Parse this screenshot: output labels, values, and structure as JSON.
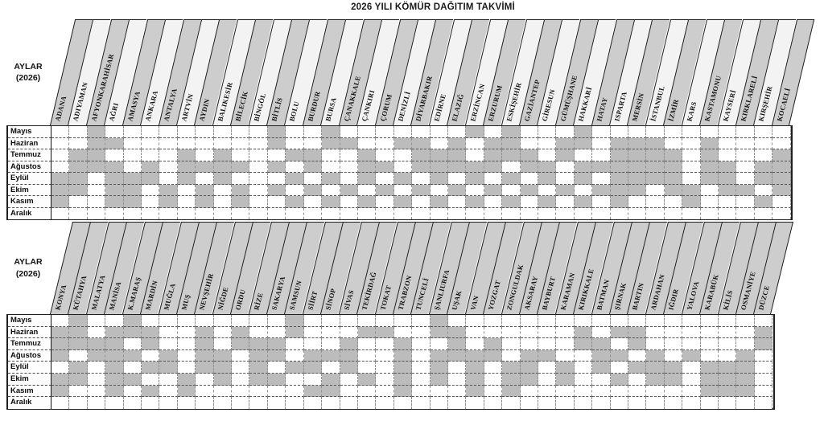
{
  "title": "2026 YILI KÖMÜR DAĞITIM TAKVİMİ",
  "row_header": {
    "line1": "AYLAR",
    "line2": "(2026)"
  },
  "months": [
    "Mayıs",
    "Haziran",
    "Temmuz",
    "Ağustos",
    "Eylül",
    "Ekim",
    "Kasım",
    "Aralık"
  ],
  "colors": {
    "cell_fill": "#bcbcbc",
    "band_gray": "#cdcdcd",
    "band_light": "#f3f3f3",
    "line": "#1f1f1f"
  },
  "tables": [
    {
      "name": "iller-adana-kocaeli",
      "provinces": [
        "ADANA",
        "ADIYAMAN",
        "AFYONKARAHİSAR",
        "AĞRI",
        "AMASYA",
        "ANKARA",
        "ANTALYA",
        "ARTVİN",
        "AYDIN",
        "BALIKESİR",
        "BİLECİK",
        "BİNGÖL",
        "BİTLİS",
        "BOLU",
        "BURDUR",
        "BURSA",
        "ÇANAKKALE",
        "ÇANKIRI",
        "ÇORUM",
        "DENİZLİ",
        "DİYARBAKIR",
        "EDİRNE",
        "ELAZIĞ",
        "ERZİNCAN",
        "ERZURUM",
        "ESKİŞEHİR",
        "GAZİANTEP",
        "GİRESUN",
        "GÜMÜŞHANE",
        "HAKKARİ",
        "HATAY",
        "ISPARTA",
        "MERSİN",
        "İSTANBUL",
        "İZMİR",
        "KARS",
        "KASTAMONU",
        "KAYSERİ",
        "KIRKLARELİ",
        "KIRŞEHİR",
        "KOCAELİ"
      ],
      "alt_bands": true,
      "schedule": [
        "00100000000010010000000101000100000000000",
        "00110000000010011001101011001101110010000",
        "01100001010001100100111011101001111010001",
        "01110101111010100110111110110111111011011",
        "11011101010001010101010101010101111011011",
        "11011010101010101010101010101011101101101",
        "10011010101001010101010101010101000100010",
        "00000000000000000000000000000000000000000"
      ]
    },
    {
      "name": "iller-konya-duzce",
      "provinces": [
        "KONYA",
        "KÜTAHYA",
        "MALATYA",
        "MANİSA",
        "K.MARAŞ",
        "MARDİN",
        "MUĞLA",
        "MUŞ",
        "NEVŞEHİR",
        "NİĞDE",
        "ORDU",
        "RİZE",
        "SAKARYA",
        "SAMSUN",
        "SİİRT",
        "SİNOP",
        "SİVAS",
        "TEKİRDAĞ",
        "TOKAT",
        "TRABZON",
        "TUNCELİ",
        "ŞANLIURFA",
        "UŞAK",
        "VAN",
        "YOZGAT",
        "ZONGULDAK",
        "AKSARAY",
        "BAYBURT",
        "KARAMAN",
        "KIRIKKALE",
        "BATMAN",
        "ŞIRNAK",
        "BARTIN",
        "ARDAHAN",
        "IĞDIR",
        "YALOVA",
        "KARABÜK",
        "KİLİS",
        "OSMANİYE",
        "DÜZCE"
      ],
      "alt_bands": false,
      "schedule": [
        "0100100000000100000001000000000000000000",
        "1101110010100100011001100000010110000001",
        "1111010010111000100100101000011010000001",
        "1011101011011011100101111011001101010010",
        "0101011011010110100101010110101011101110",
        "1101100101011001010101010110100101101110",
        "1001010100000011000100010100000000001110",
        "0000000000000000000000000000000000000000"
      ]
    }
  ]
}
